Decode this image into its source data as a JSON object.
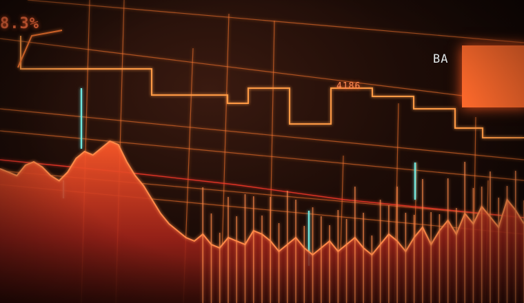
{
  "labels": {
    "percent": "8.3%",
    "box_top": "",
    "mid_value": "4186",
    "mid_value2": "",
    "right_small": "",
    "right_small2": ""
  },
  "panel": {
    "title_prefix": "BA",
    "title_rest": "",
    "block_text": ""
  },
  "colors": {
    "background": "#1d0c07",
    "line_orange": "#ff7a30",
    "area_red": "#e8442a",
    "accent_cyan": "#6fe8e0"
  },
  "chart_data": {
    "type": "area",
    "series": [
      {
        "values": [
          62,
          60,
          58,
          64,
          66,
          63,
          58,
          55,
          60,
          68,
          72,
          70,
          74,
          78,
          76,
          66,
          58,
          52,
          44,
          36,
          30,
          26,
          22,
          20,
          24,
          18,
          16,
          22,
          20,
          18,
          26,
          24,
          20,
          14,
          18,
          22,
          16,
          12,
          16,
          20,
          14,
          18,
          22,
          16,
          12,
          18,
          24,
          20,
          14,
          22,
          28,
          18,
          26,
          32,
          24,
          36,
          30,
          40,
          34,
          28,
          44,
          38,
          30
        ]
      }
    ]
  }
}
